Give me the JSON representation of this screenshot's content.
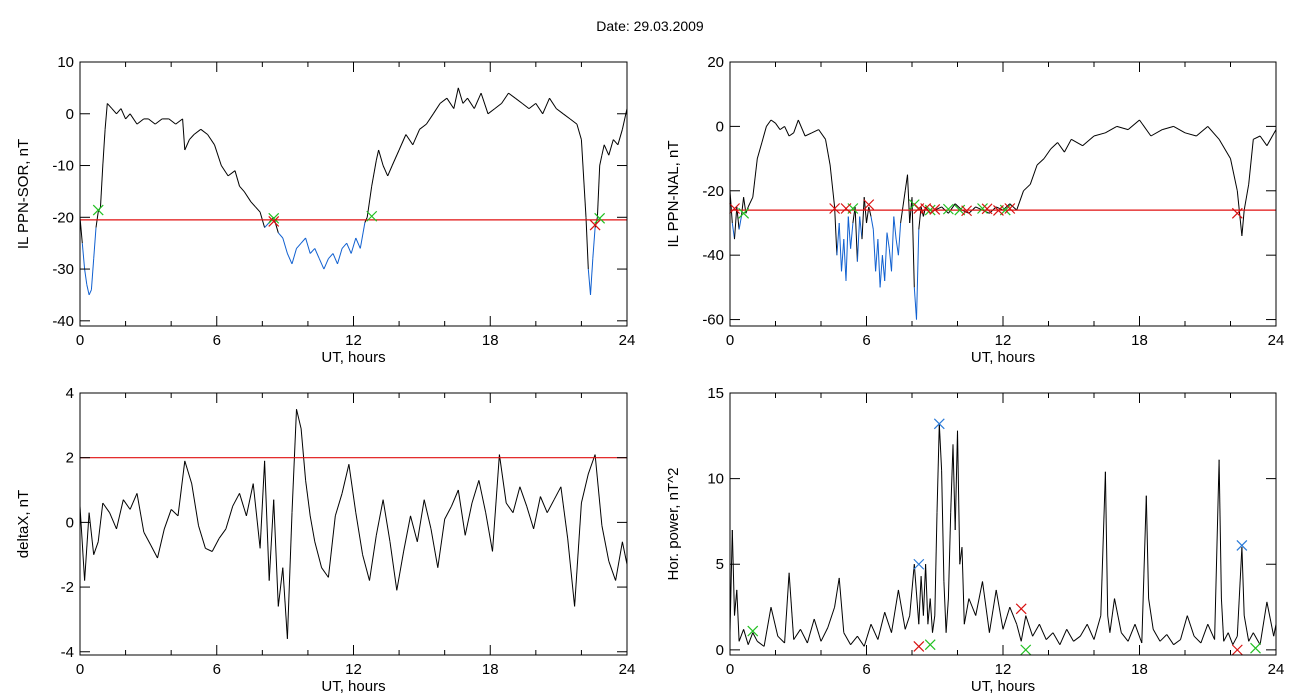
{
  "figure": {
    "date_label": "Date:",
    "date_value": "29.03.2009"
  },
  "chart_data": [
    {
      "type": "line",
      "id": "sor",
      "ylabel": "IL PPN-SOR, nT",
      "xlabel": "UT, hours",
      "xlim": [
        0,
        24
      ],
      "ylim": [
        -41,
        10
      ],
      "xticks": [
        "0",
        "6",
        "12",
        "18",
        "24"
      ],
      "yticks": [
        "-40",
        "-30",
        "-20",
        "-10",
        "0",
        "10"
      ],
      "ytick_values": [
        -40,
        -30,
        -20,
        -10,
        0,
        10
      ],
      "threshold": -20.5,
      "threshold_color": "#e01010",
      "main_color": "#000000",
      "below_color": "#1060d0",
      "x": [
        0,
        0.1,
        0.2,
        0.3,
        0.4,
        0.5,
        0.6,
        0.7,
        0.8,
        0.9,
        1.0,
        1.1,
        1.2,
        1.4,
        1.6,
        1.8,
        2.0,
        2.2,
        2.5,
        2.8,
        3.0,
        3.3,
        3.6,
        3.9,
        4.2,
        4.5,
        4.6,
        4.8,
        5.0,
        5.3,
        5.6,
        5.9,
        6.2,
        6.5,
        6.8,
        7.0,
        7.2,
        7.5,
        7.7,
        7.9,
        8.1,
        8.3,
        8.5,
        8.7,
        8.9,
        9.1,
        9.3,
        9.5,
        9.7,
        9.9,
        10.1,
        10.3,
        10.5,
        10.7,
        10.9,
        11.1,
        11.3,
        11.5,
        11.7,
        11.9,
        12.1,
        12.3,
        12.5,
        12.6,
        12.8,
        13.0,
        13.1,
        13.3,
        13.5,
        13.7,
        14.0,
        14.3,
        14.6,
        14.9,
        15.2,
        15.5,
        15.8,
        16.1,
        16.4,
        16.6,
        16.8,
        17.0,
        17.3,
        17.6,
        17.9,
        18.2,
        18.5,
        18.8,
        19.1,
        19.4,
        19.7,
        20.0,
        20.3,
        20.6,
        20.9,
        21.2,
        21.5,
        21.8,
        22.0,
        22.2,
        22.3,
        22.4,
        22.5,
        22.6,
        22.7,
        22.8,
        22.9,
        23.0,
        23.2,
        23.4,
        23.6,
        23.8,
        24.0
      ],
      "y": [
        -20,
        -25,
        -30,
        -33,
        -35,
        -34,
        -28,
        -22,
        -19,
        -18,
        -10,
        -3,
        2,
        1,
        0,
        1,
        -1,
        0,
        -2,
        -1,
        -1,
        -2,
        -1,
        -1,
        -2,
        -1,
        -7,
        -5,
        -4,
        -3,
        -4,
        -6,
        -10,
        -12,
        -11,
        -14,
        -15,
        -17,
        -18,
        -19,
        -22,
        -21,
        -20,
        -23,
        -24,
        -27,
        -29,
        -26,
        -25,
        -24,
        -27,
        -26,
        -28,
        -30,
        -28,
        -27,
        -29,
        -26,
        -25,
        -27,
        -24,
        -26,
        -21,
        -20,
        -14,
        -9,
        -7,
        -10,
        -12,
        -10,
        -7,
        -4,
        -6,
        -3,
        -2,
        0,
        2,
        3,
        1,
        5,
        2,
        3,
        1,
        4,
        0,
        1,
        2,
        4,
        3,
        2,
        1,
        2,
        0,
        3,
        1,
        0,
        -1,
        -2,
        -5,
        -20,
        -30,
        -35,
        -28,
        -22,
        -20,
        -10,
        -8,
        -6,
        -8,
        -5,
        -6,
        -3,
        1
      ]
    },
    {
      "type": "line",
      "id": "nal",
      "ylabel": "IL PPN-NAL, nT",
      "xlabel": "UT, hours",
      "xlim": [
        0,
        24
      ],
      "ylim": [
        -62,
        20
      ],
      "xticks": [
        "0",
        "6",
        "12",
        "18",
        "24"
      ],
      "yticks": [
        "-60",
        "-40",
        "-20",
        "0",
        "20"
      ],
      "ytick_values": [
        -60,
        -40,
        -20,
        0,
        20
      ],
      "threshold": -26,
      "threshold_color": "#e01010",
      "main_color": "#000000",
      "below_color": "#1060d0",
      "x": [
        0,
        0.1,
        0.2,
        0.3,
        0.4,
        0.5,
        0.6,
        0.7,
        0.8,
        1.0,
        1.2,
        1.4,
        1.6,
        1.8,
        2.0,
        2.2,
        2.4,
        2.6,
        2.8,
        3.0,
        3.3,
        3.6,
        3.9,
        4.2,
        4.4,
        4.6,
        4.7,
        4.8,
        4.9,
        5.0,
        5.1,
        5.2,
        5.3,
        5.4,
        5.5,
        5.6,
        5.7,
        5.8,
        5.9,
        6.0,
        6.1,
        6.2,
        6.3,
        6.4,
        6.5,
        6.6,
        6.7,
        6.8,
        6.9,
        7.0,
        7.1,
        7.2,
        7.3,
        7.4,
        7.5,
        7.6,
        7.7,
        7.8,
        7.9,
        8.0,
        8.1,
        8.2,
        8.3,
        8.4,
        8.5,
        8.6,
        8.8,
        9.0,
        9.3,
        9.6,
        9.9,
        10.2,
        10.5,
        10.8,
        11.1,
        11.4,
        11.7,
        12.0,
        12.3,
        12.6,
        12.9,
        13.2,
        13.5,
        13.8,
        14.1,
        14.4,
        14.7,
        15.0,
        15.5,
        16.0,
        16.5,
        17.0,
        17.5,
        18.0,
        18.5,
        19.0,
        19.5,
        20.0,
        20.5,
        21.0,
        21.5,
        22.0,
        22.3,
        22.5,
        22.6,
        22.8,
        23.0,
        23.3,
        23.6,
        24.0
      ],
      "y": [
        -20,
        -30,
        -35,
        -25,
        -32,
        -28,
        -22,
        -27,
        -25,
        -22,
        -10,
        -5,
        0,
        2,
        1,
        -1,
        0,
        -3,
        -2,
        2,
        -3,
        -2,
        -1,
        -4,
        -12,
        -25,
        -40,
        -30,
        -45,
        -35,
        -48,
        -28,
        -38,
        -30,
        -25,
        -42,
        -28,
        -35,
        -22,
        -30,
        -25,
        -28,
        -32,
        -45,
        -35,
        -50,
        -40,
        -48,
        -33,
        -38,
        -45,
        -28,
        -35,
        -40,
        -30,
        -25,
        -20,
        -15,
        -30,
        -22,
        -50,
        -60,
        -32,
        -25,
        -28,
        -25,
        -27,
        -26,
        -25,
        -27,
        -24,
        -26,
        -27,
        -25,
        -26,
        -27,
        -25,
        -26,
        -24,
        -26,
        -20,
        -18,
        -12,
        -10,
        -7,
        -5,
        -8,
        -4,
        -6,
        -3,
        -2,
        0,
        -1,
        2,
        -3,
        -1,
        0,
        -2,
        -3,
        0,
        -4,
        -10,
        -20,
        -34,
        -26,
        -18,
        -4,
        -3,
        -6,
        -1
      ]
    },
    {
      "type": "line",
      "id": "deltax",
      "ylabel": "deltaX, nT",
      "xlabel": "UT, hours",
      "xlim": [
        0,
        24
      ],
      "ylim": [
        -4.1,
        4
      ],
      "xticks": [
        "0",
        "6",
        "12",
        "18",
        "24"
      ],
      "yticks": [
        "-4",
        "-2",
        "0",
        "2",
        "4"
      ],
      "ytick_values": [
        -4,
        -2,
        0,
        2,
        4
      ],
      "threshold": 2,
      "threshold_color": "#e01010",
      "main_color": "#000000",
      "below_color": "#000000",
      "x": [
        0,
        0.2,
        0.4,
        0.6,
        0.8,
        1.0,
        1.3,
        1.6,
        1.9,
        2.2,
        2.5,
        2.8,
        3.1,
        3.4,
        3.7,
        4.0,
        4.3,
        4.6,
        4.9,
        5.2,
        5.5,
        5.8,
        6.1,
        6.4,
        6.7,
        7.0,
        7.3,
        7.6,
        7.9,
        8.1,
        8.3,
        8.5,
        8.7,
        8.9,
        9.1,
        9.3,
        9.5,
        9.7,
        9.9,
        10.1,
        10.3,
        10.6,
        10.9,
        11.2,
        11.5,
        11.8,
        12.1,
        12.4,
        12.7,
        13.0,
        13.3,
        13.6,
        13.9,
        14.2,
        14.5,
        14.8,
        15.1,
        15.4,
        15.7,
        16.0,
        16.3,
        16.6,
        16.9,
        17.2,
        17.5,
        17.8,
        18.1,
        18.4,
        18.7,
        19.0,
        19.3,
        19.6,
        19.9,
        20.2,
        20.5,
        20.8,
        21.1,
        21.4,
        21.7,
        22.0,
        22.3,
        22.6,
        22.9,
        23.2,
        23.5,
        23.8,
        24.0
      ],
      "y": [
        0.5,
        -1.8,
        0.3,
        -1.0,
        -0.6,
        0.6,
        0.3,
        -0.2,
        0.7,
        0.4,
        0.9,
        -0.3,
        -0.7,
        -1.1,
        -0.2,
        0.4,
        0.2,
        1.9,
        1.2,
        -0.1,
        -0.8,
        -0.9,
        -0.5,
        -0.2,
        0.5,
        0.9,
        0.2,
        1.2,
        -0.8,
        1.9,
        -1.8,
        0.7,
        -2.6,
        -1.4,
        -3.6,
        0.3,
        3.5,
        2.9,
        1.3,
        0.2,
        -0.6,
        -1.4,
        -1.7,
        0.2,
        0.9,
        1.8,
        0.3,
        -1.0,
        -1.8,
        -0.4,
        0.7,
        -0.6,
        -2.1,
        -0.9,
        0.2,
        -0.6,
        0.7,
        -0.2,
        -1.4,
        0.1,
        0.5,
        1.0,
        -0.4,
        0.6,
        1.3,
        0.3,
        -0.9,
        2.1,
        0.6,
        0.3,
        1.1,
        0.5,
        -0.2,
        0.8,
        0.3,
        0.7,
        1.1,
        -0.5,
        -2.6,
        0.6,
        1.5,
        2.1,
        -0.1,
        -1.2,
        -1.8,
        -0.6,
        -1.3
      ]
    },
    {
      "type": "line",
      "id": "power",
      "ylabel": "Hor. power, nT^2",
      "xlabel": "UT, hours",
      "xlim": [
        0,
        24
      ],
      "ylim": [
        -0.3,
        15
      ],
      "xticks": [
        "0",
        "6",
        "12",
        "18",
        "24"
      ],
      "yticks": [
        "0",
        "5",
        "10",
        "15"
      ],
      "ytick_values": [
        0,
        5,
        10,
        15
      ],
      "threshold": null,
      "main_color": "#000000",
      "below_color": "#000000",
      "x": [
        0,
        0.1,
        0.2,
        0.3,
        0.4,
        0.6,
        0.8,
        1.0,
        1.2,
        1.5,
        1.8,
        2.1,
        2.4,
        2.6,
        2.8,
        3.1,
        3.4,
        3.7,
        4.0,
        4.3,
        4.6,
        4.8,
        5.0,
        5.3,
        5.6,
        5.9,
        6.2,
        6.5,
        6.8,
        7.1,
        7.4,
        7.7,
        7.9,
        8.1,
        8.3,
        8.4,
        8.5,
        8.6,
        8.7,
        8.8,
        8.9,
        9.0,
        9.1,
        9.2,
        9.3,
        9.4,
        9.5,
        9.6,
        9.7,
        9.8,
        9.9,
        10.0,
        10.1,
        10.2,
        10.3,
        10.5,
        10.8,
        11.1,
        11.4,
        11.7,
        12.0,
        12.3,
        12.6,
        12.8,
        13.0,
        13.3,
        13.6,
        13.9,
        14.2,
        14.5,
        14.8,
        15.1,
        15.4,
        15.7,
        16.0,
        16.3,
        16.5,
        16.6,
        16.7,
        16.9,
        17.2,
        17.5,
        17.8,
        18.1,
        18.3,
        18.4,
        18.6,
        18.9,
        19.2,
        19.5,
        19.8,
        20.1,
        20.4,
        20.7,
        21.0,
        21.3,
        21.5,
        21.6,
        21.7,
        21.9,
        22.1,
        22.3,
        22.5,
        22.6,
        22.8,
        23.0,
        23.3,
        23.6,
        23.9,
        24.0
      ],
      "y": [
        1.0,
        7.0,
        2.0,
        3.5,
        0.5,
        1.2,
        0.3,
        1.0,
        0.5,
        0.2,
        2.5,
        0.8,
        0.4,
        4.5,
        0.6,
        1.2,
        0.4,
        1.8,
        0.5,
        1.3,
        2.5,
        4.2,
        1.0,
        0.3,
        0.8,
        0.2,
        1.5,
        0.6,
        2.2,
        1.0,
        3.5,
        1.2,
        2.0,
        5.0,
        1.5,
        4.3,
        2.0,
        5.0,
        1.5,
        3.0,
        1.0,
        2.0,
        8.0,
        13.2,
        10.5,
        4.0,
        1.0,
        3.0,
        8.0,
        12.0,
        7.0,
        12.8,
        5.0,
        6.0,
        1.5,
        3.0,
        2.0,
        4.0,
        1.0,
        3.5,
        1.2,
        2.5,
        1.5,
        0.5,
        2.0,
        0.8,
        1.5,
        0.6,
        1.0,
        0.3,
        1.2,
        0.5,
        0.8,
        1.5,
        0.6,
        2.0,
        10.4,
        2.0,
        1.0,
        3.0,
        1.0,
        0.5,
        1.5,
        0.4,
        9.0,
        3.0,
        1.2,
        0.5,
        0.9,
        0.3,
        0.6,
        2.0,
        0.8,
        0.4,
        1.5,
        0.6,
        11.1,
        3.0,
        0.5,
        1.0,
        0.3,
        0.8,
        6.0,
        2.0,
        0.5,
        1.0,
        0.3,
        2.8,
        0.8,
        1.5
      ]
    }
  ],
  "markers": {
    "sor": {
      "red": [
        [
          8.5,
          -20.8
        ],
        [
          22.6,
          -21.5
        ]
      ],
      "green": [
        [
          0.8,
          -18.6
        ],
        [
          8.5,
          -20.2
        ],
        [
          12.8,
          -19.8
        ],
        [
          22.8,
          -20.2
        ]
      ]
    },
    "nal": {
      "red": [
        [
          0.2,
          -25.5
        ],
        [
          4.6,
          -25.5
        ],
        [
          5.1,
          -25.5
        ],
        [
          6.1,
          -24.3
        ],
        [
          8.3,
          -25.5
        ],
        [
          8.6,
          -25.5
        ],
        [
          9.0,
          -25.8
        ],
        [
          10.4,
          -26.2
        ],
        [
          11.3,
          -25.6
        ],
        [
          11.8,
          -26.1
        ],
        [
          12.3,
          -25.5
        ],
        [
          22.3,
          -27
        ]
      ],
      "green": [
        [
          0.6,
          -27
        ],
        [
          5.4,
          -25.5
        ],
        [
          8.1,
          -24.3
        ],
        [
          8.8,
          -26
        ],
        [
          9.6,
          -25.7
        ],
        [
          10.1,
          -26
        ],
        [
          11.1,
          -25.5
        ],
        [
          12.1,
          -26
        ]
      ]
    },
    "power": {
      "blue": [
        [
          9.2,
          13.2
        ],
        [
          8.3,
          5.0
        ],
        [
          22.5,
          6.1
        ]
      ],
      "green": [
        [
          1.0,
          1.1
        ],
        [
          8.8,
          0.3
        ],
        [
          13.0,
          0.0
        ],
        [
          23.1,
          0.1
        ]
      ],
      "red": [
        [
          8.3,
          0.2
        ],
        [
          12.8,
          2.4
        ],
        [
          22.3,
          0.0
        ]
      ]
    }
  },
  "colors": {
    "marker_red": "#d81010",
    "marker_green": "#20c020",
    "marker_blue": "#2a7ad8"
  }
}
